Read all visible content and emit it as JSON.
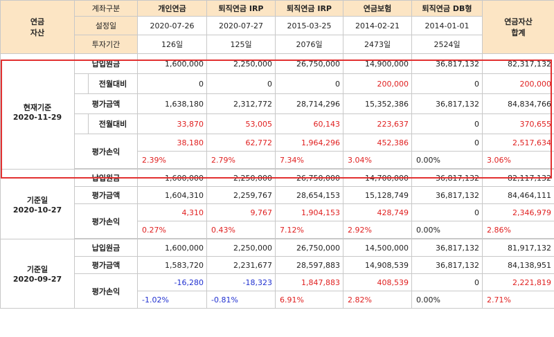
{
  "header": {
    "asset_label": "연금\n자산",
    "total_label": "연금자산\n합계",
    "row_labels": [
      "계좌구분",
      "설정일",
      "투자기간"
    ],
    "accounts": [
      {
        "name": "개인연금",
        "date": "2020-07-26",
        "period": "126일"
      },
      {
        "name": "퇴직연금 IRP",
        "date": "2020-07-27",
        "period": "125일"
      },
      {
        "name": "퇴직연금 IRP",
        "date": "2015-03-25",
        "period": "2076일"
      },
      {
        "name": "연금보험",
        "date": "2014-02-21",
        "period": "2473일"
      },
      {
        "name": "퇴직연금 DB형",
        "date": "2014-01-01",
        "period": "2524일"
      }
    ]
  },
  "groups": [
    {
      "label": "현재기준\n2020-11-29",
      "principal_label": "납입원금",
      "principal": [
        "1,600,000",
        "2,250,000",
        "26,750,000",
        "14,900,000",
        "36,817,132",
        "82,317,132"
      ],
      "principal_mom_label": "전월대비",
      "principal_mom": [
        "0",
        "0",
        "0",
        "200,000",
        "0",
        "200,000"
      ],
      "valuation_label": "평가금액",
      "valuation": [
        "1,638,180",
        "2,312,772",
        "28,714,296",
        "15,352,386",
        "36,817,132",
        "84,834,766"
      ],
      "valuation_mom_label": "전월대비",
      "valuation_mom": [
        "33,870",
        "53,005",
        "60,143",
        "223,637",
        "0",
        "370,655"
      ],
      "pl_label": "평가손익",
      "pl": [
        "38,180",
        "62,772",
        "1,964,296",
        "452,386",
        "0",
        "2,517,634"
      ],
      "pl_pct": [
        "2.39%",
        "2.79%",
        "7.34%",
        "3.04%",
        "0.00%",
        "3.06%"
      ]
    },
    {
      "label": "기준일\n2020-10-27",
      "principal_label": "납입원금",
      "principal": [
        "1,600,000",
        "2,250,000",
        "26,750,000",
        "14,700,000",
        "36,817,132",
        "82,117,132"
      ],
      "valuation_label": "평가금액",
      "valuation": [
        "1,604,310",
        "2,259,767",
        "28,654,153",
        "15,128,749",
        "36,817,132",
        "84,464,111"
      ],
      "pl_label": "평가손익",
      "pl": [
        "4,310",
        "9,767",
        "1,904,153",
        "428,749",
        "0",
        "2,346,979"
      ],
      "pl_pct": [
        "0.27%",
        "0.43%",
        "7.12%",
        "2.92%",
        "0.00%",
        "2.86%"
      ]
    },
    {
      "label": "기준일\n2020-09-27",
      "principal_label": "납입원금",
      "principal": [
        "1,600,000",
        "2,250,000",
        "26,750,000",
        "14,500,000",
        "36,817,132",
        "81,917,132"
      ],
      "valuation_label": "평가금액",
      "valuation": [
        "1,583,720",
        "2,231,677",
        "28,597,883",
        "14,908,539",
        "36,817,132",
        "84,138,951"
      ],
      "pl_label": "평가손익",
      "pl": [
        "-16,280",
        "-18,323",
        "1,847,883",
        "408,539",
        "0",
        "2,221,819"
      ],
      "pl_pct": [
        "-1.02%",
        "-0.81%",
        "6.91%",
        "2.82%",
        "0.00%",
        "2.71%"
      ]
    }
  ],
  "colors": {
    "header_bg": "#fce5c4",
    "positive": "#e02020",
    "negative": "#2030d0",
    "highlight_border": "#e23030"
  }
}
